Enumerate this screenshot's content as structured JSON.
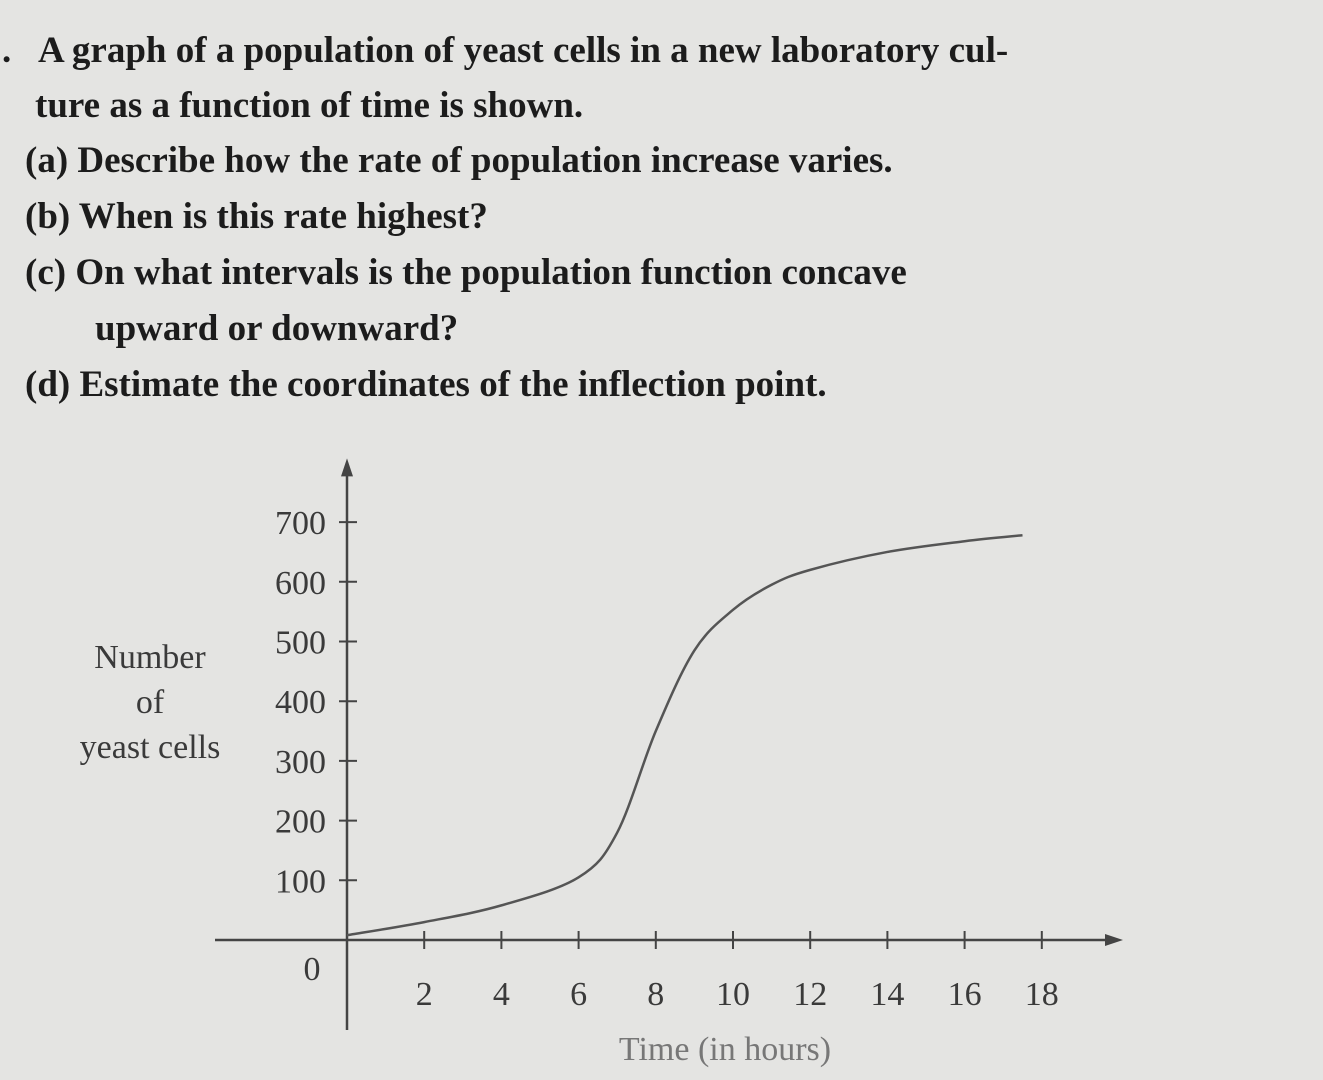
{
  "problem": {
    "intro": [
      "A graph of a population of yeast cells in a new laboratory cul-",
      "ture as a function of time is shown."
    ],
    "parts": [
      [
        "(a) Describe how the rate of population increase varies."
      ],
      [
        "(b) When is this rate highest?"
      ],
      [
        "(c) On what intervals is the population function concave",
        "upward or downward?"
      ],
      [
        "(d) Estimate the coordinates of the inflection point."
      ]
    ]
  },
  "chart_data": {
    "type": "line",
    "xlabel": "Time (in hours)",
    "ylabel": [
      "Number",
      "of",
      "yeast cells"
    ],
    "x": [
      0,
      2,
      4,
      6,
      7,
      8,
      9,
      10,
      11,
      12,
      14,
      16,
      17.5
    ],
    "series": [
      {
        "color": "#555555",
        "values": [
          8,
          30,
          58,
          105,
          180,
          350,
          485,
          553,
          595,
          620,
          650,
          668,
          678
        ]
      }
    ],
    "xlim": [
      0,
      20
    ],
    "ylim": [
      0,
      800
    ],
    "xticks": [
      0,
      2,
      4,
      6,
      8,
      10,
      12,
      14,
      16,
      18
    ],
    "yticks": [
      100,
      200,
      300,
      400,
      500,
      600,
      700
    ],
    "grid": false
  }
}
